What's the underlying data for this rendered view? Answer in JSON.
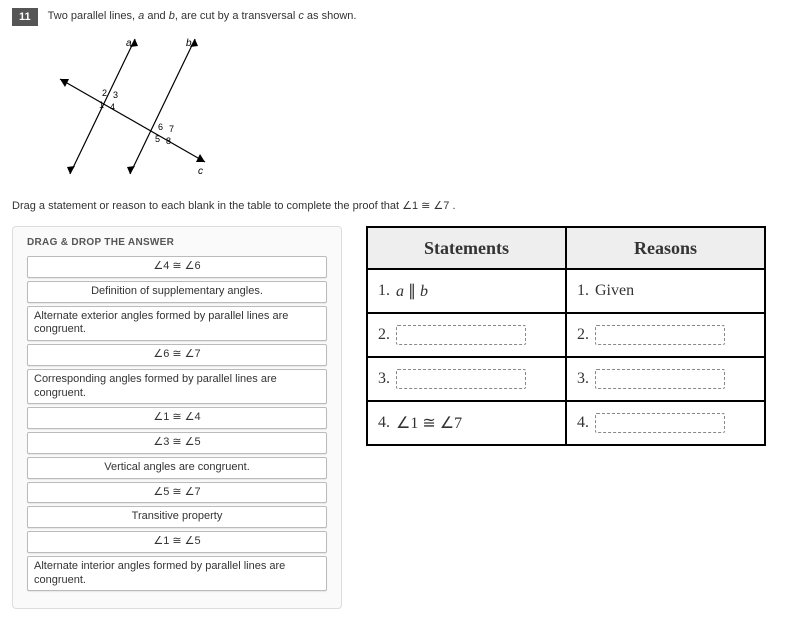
{
  "question": {
    "number": "11",
    "text_pre": "Two parallel lines, ",
    "var_a": "a",
    "text_mid1": " and ",
    "var_b": "b",
    "text_mid2": ", are cut by a transversal ",
    "var_c": "c",
    "text_post": " as shown."
  },
  "instruction": {
    "pre": "Drag a statement or reason to each blank in the table to complete the proof that ",
    "expr": "∠1 ≅ ∠7",
    "post": " ."
  },
  "drag": {
    "title": "DRAG & DROP THE ANSWER",
    "options": [
      {
        "text": "∠4 ≅ ∠6",
        "align": "center"
      },
      {
        "text": "Definition of supplementary angles.",
        "align": "center"
      },
      {
        "text": "Alternate exterior angles formed by parallel lines are congruent.",
        "align": "left"
      },
      {
        "text": "∠6 ≅ ∠7",
        "align": "center"
      },
      {
        "text": "Corresponding angles formed by parallel lines are congruent.",
        "align": "left"
      },
      {
        "text": "∠1 ≅ ∠4",
        "align": "center"
      },
      {
        "text": "∠3 ≅ ∠5",
        "align": "center"
      },
      {
        "text": "Vertical angles are congruent.",
        "align": "center"
      },
      {
        "text": "∠5 ≅ ∠7",
        "align": "center"
      },
      {
        "text": "Transitive property",
        "align": "center"
      },
      {
        "text": "∠1 ≅ ∠5",
        "align": "center"
      },
      {
        "text": "Alternate interior angles formed by parallel lines are congruent.",
        "align": "left"
      }
    ]
  },
  "table": {
    "head_statements": "Statements",
    "head_reasons": "Reasons",
    "rows": [
      {
        "snum": "1.",
        "stext": "a ∥ b",
        "rnum": "1.",
        "rtext": "Given",
        "sslot": false,
        "rslot": false
      },
      {
        "snum": "2.",
        "stext": "",
        "rnum": "2.",
        "rtext": "",
        "sslot": true,
        "rslot": true
      },
      {
        "snum": "3.",
        "stext": "",
        "rnum": "3.",
        "rtext": "",
        "sslot": true,
        "rslot": true
      },
      {
        "snum": "4.",
        "stext": "∠1 ≅ ∠7",
        "rnum": "4.",
        "rtext": "",
        "sslot": false,
        "rslot": true
      }
    ]
  },
  "diagram": {
    "labels": {
      "a": "a",
      "b": "b",
      "c": "c"
    },
    "angle_nums": [
      "1",
      "2",
      "3",
      "4",
      "5",
      "6",
      "7",
      "8"
    ],
    "line_color": "#000000",
    "font_size": 10
  }
}
